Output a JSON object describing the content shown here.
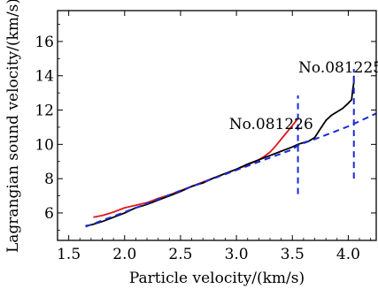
{
  "chart_data": {
    "type": "line",
    "xlabel": "Particle velocity/(km/s)",
    "ylabel": "Lagrangian sound velocity/(km/s)",
    "xlim": [
      1.4,
      4.25
    ],
    "ylim": [
      4.4,
      17.8
    ],
    "xticks": [
      "1.5",
      "2.0",
      "2.5",
      "3.0",
      "3.5",
      "4.0"
    ],
    "yticks": [
      "6",
      "8",
      "10",
      "12",
      "14",
      "16"
    ],
    "grid": false,
    "series": [
      {
        "color": "#e0161c",
        "style": "solid",
        "x": [
          1.72,
          1.8,
          1.9,
          2.0,
          2.1,
          2.2,
          2.3,
          2.4,
          2.5,
          2.6,
          2.7,
          2.8,
          2.9,
          3.0,
          3.1,
          3.2,
          3.25,
          3.3,
          3.35,
          3.4,
          3.45,
          3.5,
          3.55
        ],
        "y": [
          5.75,
          5.85,
          6.05,
          6.3,
          6.45,
          6.6,
          6.85,
          7.05,
          7.3,
          7.55,
          7.8,
          8.05,
          8.3,
          8.55,
          8.8,
          9.1,
          9.3,
          9.55,
          9.9,
          10.3,
          10.7,
          11.1,
          11.5
        ]
      },
      {
        "color": "#000000",
        "style": "solid",
        "x": [
          1.65,
          1.7,
          1.8,
          1.9,
          2.0,
          2.1,
          2.2,
          2.3,
          2.4,
          2.5,
          2.6,
          2.7,
          2.8,
          2.9,
          3.0,
          3.1,
          3.2,
          3.3,
          3.4,
          3.5,
          3.55,
          3.6,
          3.65,
          3.7,
          3.75,
          3.8,
          3.85,
          3.9,
          3.95,
          4.0,
          4.03,
          4.04,
          4.05,
          4.05
        ],
        "y": [
          5.25,
          5.3,
          5.5,
          5.75,
          6.0,
          6.3,
          6.5,
          6.75,
          7.0,
          7.25,
          7.55,
          7.75,
          8.05,
          8.3,
          8.55,
          8.85,
          9.1,
          9.35,
          9.6,
          9.85,
          10.0,
          10.1,
          10.2,
          10.4,
          10.9,
          11.4,
          11.7,
          11.9,
          12.1,
          12.4,
          12.6,
          13.2,
          13.6,
          14.0
        ]
      },
      {
        "color": "#1a2ad6",
        "style": "dashed",
        "x": [
          1.65,
          2.0,
          2.5,
          3.0,
          3.5,
          3.55,
          3.7,
          3.8,
          4.0,
          4.25
        ],
        "y": [
          5.2,
          6.05,
          7.3,
          8.5,
          9.7,
          9.95,
          10.3,
          10.55,
          11.05,
          11.8
        ]
      }
    ],
    "markers": [
      {
        "x": 3.55,
        "y": [
          7.1,
          12.85
        ],
        "color": "#1a2ad6",
        "style": "dashed"
      },
      {
        "x": 4.05,
        "y": [
          8.0,
          14.4
        ],
        "color": "#1a2ad6",
        "style": "dashed"
      }
    ],
    "annotations": [
      {
        "text": "No.081226",
        "x": 3.31,
        "y": 10.9
      },
      {
        "text": "No.081225",
        "x": 3.93,
        "y": 14.2
      }
    ]
  }
}
